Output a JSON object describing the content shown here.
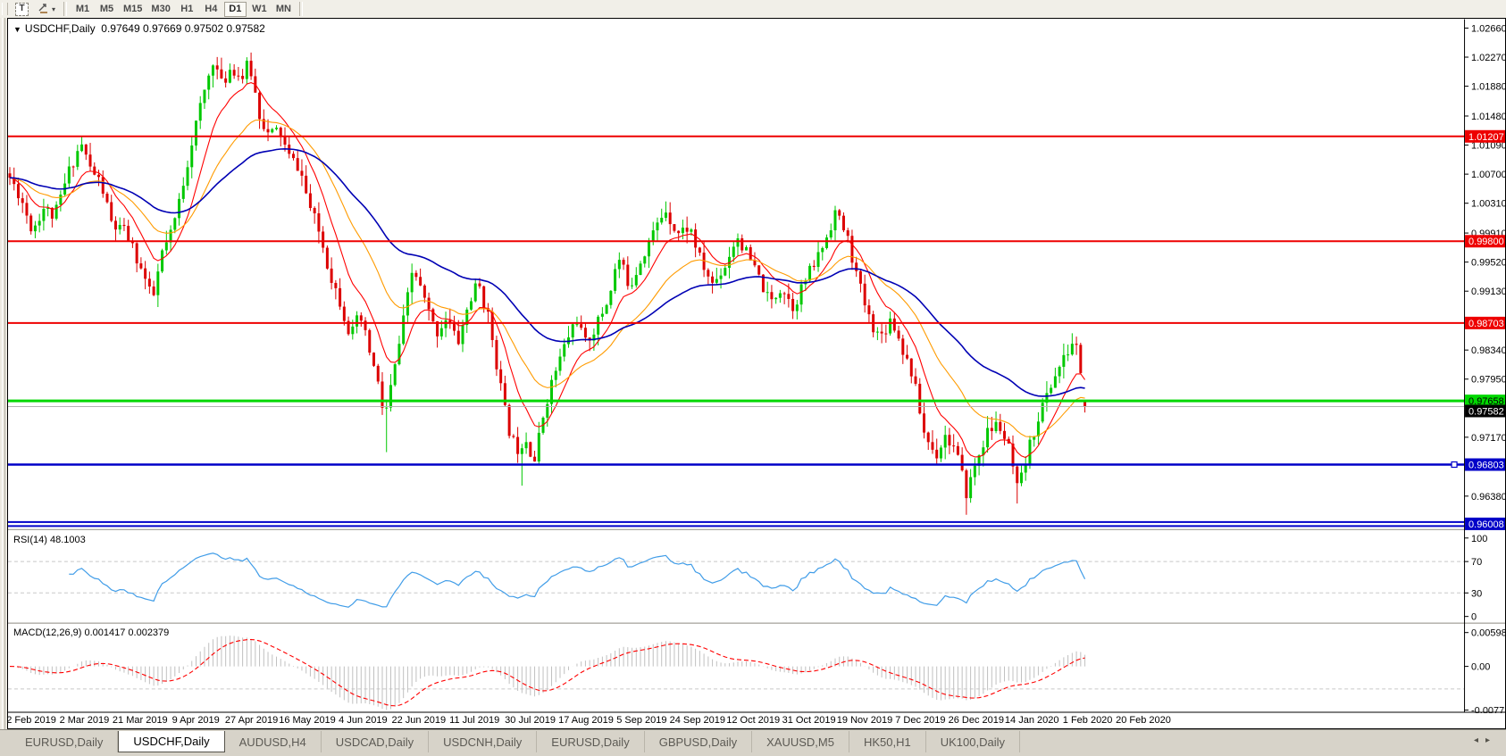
{
  "toolbar": {
    "text_tool_label": "T",
    "dropdown_caret": "▾",
    "timeframes": [
      "M1",
      "M5",
      "M15",
      "M30",
      "H1",
      "H4",
      "D1",
      "W1",
      "MN"
    ],
    "active_timeframe": "D1"
  },
  "chart": {
    "collapse_icon": "▼",
    "title": "USDCHF,Daily",
    "ohlc": "0.97649 0.97669 0.97502 0.97582"
  },
  "indicators": {
    "rsi": {
      "label": "RSI(14) 48.1003",
      "value": 48.1003,
      "period": 14,
      "axis_ticks": [
        100,
        70,
        30,
        0
      ],
      "level_lines": [
        70,
        30
      ],
      "line_color": "#419de8"
    },
    "macd": {
      "label": "MACD(12,26,9) 0.001417 0.002379",
      "macd_value": 0.001417,
      "signal_value": 0.002379,
      "axis_ticks": [
        {
          "v": 0.005986,
          "label": "0.005986"
        },
        {
          "v": 0,
          "label": "0.00"
        },
        {
          "v": -0.007737,
          "label": "-0.007737"
        }
      ],
      "level_line": -0.004,
      "hist_color": "#c0c0c0",
      "signal_color": "#ff0000"
    }
  },
  "chart_data": {
    "type": "candlestick",
    "symbol": "USDCHF",
    "timeframe": "Daily",
    "title": "USDCHF,Daily 0.97649 0.97669 0.97502 0.97582",
    "visible_range": {
      "start": "12 Feb 2019",
      "end": "20 Feb 2020"
    },
    "last_candle": {
      "open": 0.97649,
      "high": 0.97669,
      "low": 0.97502,
      "close": 0.97582
    },
    "current_price": 0.97582,
    "price_axis_ticks": [
      1.0266,
      1.0227,
      1.0188,
      1.0148,
      1.0109,
      1.007,
      1.0031,
      0.9991,
      0.9952,
      0.9913,
      0.9834,
      0.9795,
      0.9717,
      0.9638
    ],
    "horizontal_lines": [
      {
        "price": 1.01207,
        "color": "#ee0000",
        "width": 2,
        "text": "#ffffff"
      },
      {
        "price": 0.998,
        "color": "#ee0000",
        "width": 2,
        "text": "#ffffff"
      },
      {
        "price": 0.98703,
        "color": "#ee0000",
        "width": 2,
        "text": "#ffffff"
      },
      {
        "price": 0.97658,
        "color": "#00d800",
        "width": 3,
        "text": "#000000"
      },
      {
        "price": 0.96803,
        "color": "#0000c8",
        "width": 2.5,
        "text": "#ffffff",
        "handle": true
      },
      {
        "price": 0.96008,
        "color": "#0000c8",
        "width": 2,
        "text": "#ffffff",
        "double": true
      }
    ],
    "current_line_color": "#b4b4b4",
    "colors": {
      "bull": "#00c800",
      "bear": "#dc0000",
      "level_dash": "#c8c8c8"
    },
    "moving_averages": [
      {
        "name": "fast-ma",
        "period": 10,
        "color": "#ff0000",
        "width": 1.1
      },
      {
        "name": "medium-ma",
        "period": 25,
        "color": "#ff9b00",
        "width": 1.1
      },
      {
        "name": "slow-ma",
        "period": 55,
        "color": "#0000b4",
        "width": 1.6
      }
    ],
    "candle_count": 255,
    "price_path": [
      [
        2,
        1.0065
      ],
      [
        14,
        1.004
      ],
      [
        27,
        0.9995
      ],
      [
        40,
        1.0025
      ],
      [
        52,
        1.0012
      ],
      [
        70,
        1.008
      ],
      [
        82,
        1.0112
      ],
      [
        92,
        1.0078
      ],
      [
        104,
        1.0058
      ],
      [
        117,
        1.0
      ],
      [
        132,
        0.9992
      ],
      [
        144,
        0.9958
      ],
      [
        154,
        0.9928
      ],
      [
        162,
        0.9898
      ],
      [
        172,
        0.9962
      ],
      [
        184,
        0.9992
      ],
      [
        197,
        1.0062
      ],
      [
        207,
        1.012
      ],
      [
        220,
        1.018
      ],
      [
        230,
        1.0225
      ],
      [
        240,
        1.0188
      ],
      [
        250,
        1.0215
      ],
      [
        262,
        1.0198
      ],
      [
        270,
        1.022
      ],
      [
        282,
        1.015
      ],
      [
        292,
        1.0122
      ],
      [
        304,
        1.013
      ],
      [
        314,
        1.0094
      ],
      [
        327,
        1.0078
      ],
      [
        337,
        1.003
      ],
      [
        350,
        0.9988
      ],
      [
        360,
        0.994
      ],
      [
        372,
        0.99
      ],
      [
        384,
        0.9852
      ],
      [
        394,
        0.988
      ],
      [
        404,
        0.9838
      ],
      [
        414,
        0.9792
      ],
      [
        422,
        0.9742
      ],
      [
        432,
        0.98
      ],
      [
        444,
        0.9878
      ],
      [
        454,
        0.9945
      ],
      [
        467,
        0.99
      ],
      [
        480,
        0.9856
      ],
      [
        492,
        0.988
      ],
      [
        504,
        0.9842
      ],
      [
        516,
        0.9895
      ],
      [
        527,
        0.9925
      ],
      [
        540,
        0.987
      ],
      [
        550,
        0.98
      ],
      [
        560,
        0.9732
      ],
      [
        570,
        0.97
      ],
      [
        580,
        0.9718
      ],
      [
        590,
        0.9685
      ],
      [
        602,
        0.976
      ],
      [
        612,
        0.98
      ],
      [
        624,
        0.984
      ],
      [
        637,
        0.9878
      ],
      [
        647,
        0.9842
      ],
      [
        660,
        0.9868
      ],
      [
        672,
        0.99
      ],
      [
        684,
        0.9958
      ],
      [
        697,
        0.992
      ],
      [
        710,
        0.9958
      ],
      [
        722,
        0.9988
      ],
      [
        737,
        1.0024
      ],
      [
        750,
        0.999
      ],
      [
        764,
        1.0
      ],
      [
        777,
        0.995
      ],
      [
        790,
        0.9922
      ],
      [
        804,
        0.9948
      ],
      [
        817,
        0.9988
      ],
      [
        830,
        0.9958
      ],
      [
        842,
        0.993
      ],
      [
        854,
        0.9896
      ],
      [
        867,
        0.992
      ],
      [
        880,
        0.9892
      ],
      [
        892,
        0.9924
      ],
      [
        904,
        0.995
      ],
      [
        917,
        0.9984
      ],
      [
        927,
        1.002
      ],
      [
        940,
        0.9988
      ],
      [
        952,
        0.993
      ],
      [
        964,
        0.988
      ],
      [
        977,
        0.985
      ],
      [
        990,
        0.9878
      ],
      [
        1002,
        0.9838
      ],
      [
        1014,
        0.98
      ],
      [
        1027,
        0.9722
      ],
      [
        1040,
        0.9692
      ],
      [
        1050,
        0.972
      ],
      [
        1062,
        0.97
      ],
      [
        1074,
        0.9642
      ],
      [
        1087,
        0.969
      ],
      [
        1097,
        0.9722
      ],
      [
        1110,
        0.9736
      ],
      [
        1122,
        0.97
      ],
      [
        1132,
        0.9642
      ],
      [
        1144,
        0.97
      ],
      [
        1154,
        0.9742
      ],
      [
        1164,
        0.9772
      ],
      [
        1174,
        0.9802
      ],
      [
        1184,
        0.9822
      ],
      [
        1194,
        0.9846
      ],
      [
        1200,
        0.983
      ],
      [
        1207,
        0.97582
      ]
    ],
    "spike_lows": [
      [
        422,
        0.9697
      ],
      [
        577,
        0.9652
      ],
      [
        1074,
        0.9613
      ],
      [
        1132,
        0.9628
      ]
    ],
    "date_ticks": [
      "12 Feb 2019",
      "2 Mar 2019",
      "21 Mar 2019",
      "9 Apr 2019",
      "27 Apr 2019",
      "16 May 2019",
      "4 Jun 2019",
      "22 Jun 2019",
      "11 Jul 2019",
      "30 Jul 2019",
      "17 Aug 2019",
      "5 Sep 2019",
      "24 Sep 2019",
      "12 Oct 2019",
      "31 Oct 2019",
      "19 Nov 2019",
      "7 Dec 2019",
      "26 Dec 2019",
      "14 Jan 2020",
      "1 Feb 2020",
      "20 Feb 2020"
    ]
  },
  "tabs": {
    "prev_arrow": "◂",
    "next_arrow": "▸",
    "items": [
      {
        "label": "EURUSD,Daily",
        "active": false
      },
      {
        "label": "USDCHF,Daily",
        "active": true
      },
      {
        "label": "AUDUSD,H4",
        "active": false
      },
      {
        "label": "USDCAD,Daily",
        "active": false
      },
      {
        "label": "USDCNH,Daily",
        "active": false
      },
      {
        "label": "EURUSD,Daily",
        "active": false
      },
      {
        "label": "GBPUSD,Daily",
        "active": false
      },
      {
        "label": "XAUUSD,M5",
        "active": false
      },
      {
        "label": "HK50,H1",
        "active": false
      },
      {
        "label": "UK100,Daily",
        "active": false
      }
    ]
  }
}
